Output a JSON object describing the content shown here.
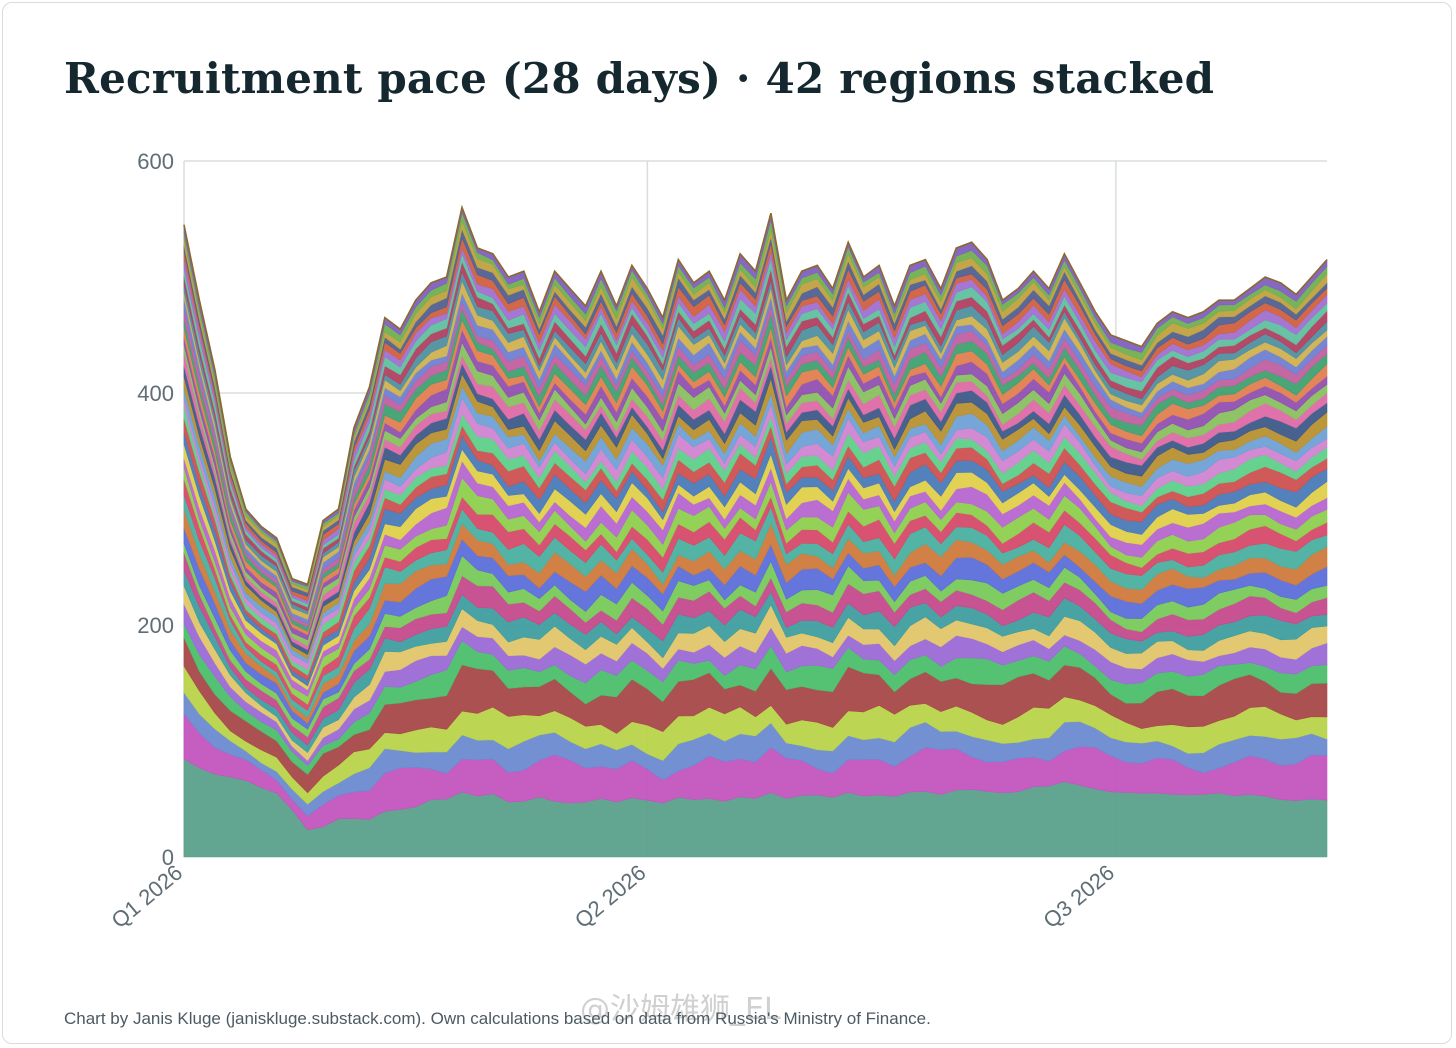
{
  "title": "Recruitment pace (28 days) · 42 regions stacked",
  "footer": "Chart by Janis Kluge (janiskluge.substack.com). Own calculations based on data from Russia's Ministry of Finance.",
  "watermark": "@沙姆雄狮_EL",
  "chart_data": {
    "type": "area",
    "title": "Recruitment pace (28 days) · 42 regions stacked",
    "xlabel": "",
    "ylabel": "",
    "ylim": [
      0,
      600
    ],
    "y_ticks": [
      "0",
      "200",
      "400",
      "600"
    ],
    "x_ticks": [
      "Q1 2026",
      "Q2 2026",
      "Q3 2026"
    ],
    "x_tick_dates": [
      "2026-01-01",
      "2026-04-01",
      "2026-07-01"
    ],
    "x_range": [
      "2026-01-01",
      "2026-08-11"
    ],
    "grid": true,
    "legend": "none",
    "stacked": true,
    "series_count": 42,
    "series_colors": [
      "#5aa08a",
      "#c354be",
      "#6c8ad0",
      "#b8d34a",
      "#a84848",
      "#4bbf6a",
      "#9b6ad6",
      "#e2c56a",
      "#3f9e9f",
      "#c44a8c",
      "#78c95a",
      "#5c6ed9",
      "#d07a3c",
      "#4ab0a0",
      "#d64a6a",
      "#8ecf4e",
      "#b666cf",
      "#e0d04a",
      "#4a7ab8",
      "#ce5050",
      "#5fd08a",
      "#d084d0",
      "#6fa0d6",
      "#b89030",
      "#3e5a8a",
      "#de6aa6",
      "#88c060",
      "#9050b0",
      "#e08050",
      "#40a070",
      "#c060a0",
      "#7080d0",
      "#d0b050",
      "#5090a0",
      "#b04060",
      "#60c0a0",
      "#a070d0",
      "#d06040",
      "#506090",
      "#c0a040",
      "#70b050",
      "#8060c0"
    ],
    "dates": [
      "2026-01-01",
      "2026-01-04",
      "2026-01-07",
      "2026-01-10",
      "2026-01-13",
      "2026-01-16",
      "2026-01-19",
      "2026-01-22",
      "2026-01-25",
      "2026-01-28",
      "2026-01-31",
      "2026-02-03",
      "2026-02-06",
      "2026-02-09",
      "2026-02-12",
      "2026-02-15",
      "2026-02-18",
      "2026-02-21",
      "2026-02-24",
      "2026-02-27",
      "2026-03-02",
      "2026-03-05",
      "2026-03-08",
      "2026-03-11",
      "2026-03-14",
      "2026-03-17",
      "2026-03-20",
      "2026-03-23",
      "2026-03-26",
      "2026-03-29",
      "2026-04-01",
      "2026-04-04",
      "2026-04-07",
      "2026-04-10",
      "2026-04-13",
      "2026-04-16",
      "2026-04-19",
      "2026-04-22",
      "2026-04-25",
      "2026-04-28",
      "2026-05-01",
      "2026-05-04",
      "2026-05-07",
      "2026-05-10",
      "2026-05-13",
      "2026-05-16",
      "2026-05-19",
      "2026-05-22",
      "2026-05-25",
      "2026-05-28",
      "2026-05-31",
      "2026-06-03",
      "2026-06-06",
      "2026-06-09",
      "2026-06-12",
      "2026-06-15",
      "2026-06-18",
      "2026-06-21",
      "2026-06-24",
      "2026-06-27",
      "2026-06-30",
      "2026-07-03",
      "2026-07-06",
      "2026-07-09",
      "2026-07-12",
      "2026-07-15",
      "2026-07-18",
      "2026-07-21",
      "2026-07-24",
      "2026-07-27",
      "2026-07-30",
      "2026-08-02",
      "2026-08-05",
      "2026-08-08",
      "2026-08-11"
    ],
    "totals": [
      545,
      480,
      420,
      345,
      300,
      285,
      275,
      240,
      235,
      290,
      300,
      370,
      405,
      465,
      455,
      480,
      495,
      500,
      560,
      525,
      520,
      500,
      505,
      470,
      505,
      490,
      475,
      505,
      475,
      510,
      490,
      465,
      515,
      495,
      505,
      480,
      520,
      505,
      555,
      480,
      505,
      510,
      490,
      530,
      500,
      510,
      475,
      510,
      515,
      490,
      525,
      530,
      515,
      480,
      490,
      505,
      490,
      520,
      495,
      470,
      450,
      445,
      440,
      460,
      470,
      465,
      470,
      480,
      480,
      490,
      500,
      495,
      485,
      500,
      515
    ],
    "bottom_share": [
      0.155,
      0.16,
      0.17,
      0.2,
      0.22,
      0.21,
      0.2,
      0.17,
      0.1,
      0.09,
      0.11,
      0.09,
      0.08,
      0.085,
      0.09,
      0.09,
      0.1,
      0.1,
      0.1,
      0.1,
      0.105,
      0.095,
      0.095,
      0.11,
      0.095,
      0.095,
      0.1,
      0.1,
      0.1,
      0.1,
      0.1,
      0.1,
      0.1,
      0.1,
      0.1,
      0.1,
      0.1,
      0.1,
      0.1,
      0.105,
      0.105,
      0.105,
      0.105,
      0.105,
      0.105,
      0.105,
      0.11,
      0.11,
      0.11,
      0.11,
      0.11,
      0.11,
      0.11,
      0.115,
      0.115,
      0.12,
      0.125,
      0.125,
      0.125,
      0.125,
      0.125,
      0.125,
      0.125,
      0.12,
      0.115,
      0.115,
      0.115,
      0.115,
      0.11,
      0.11,
      0.105,
      0.1,
      0.1,
      0.1,
      0.095
    ],
    "series_weights": [
      0.105,
      0.065,
      0.04,
      0.045,
      0.06,
      0.035,
      0.03,
      0.03,
      0.028,
      0.03,
      0.025,
      0.03,
      0.028,
      0.026,
      0.025,
      0.025,
      0.024,
      0.022,
      0.022,
      0.022,
      0.02,
      0.02,
      0.02,
      0.02,
      0.019,
      0.018,
      0.018,
      0.018,
      0.017,
      0.017,
      0.016,
      0.016,
      0.016,
      0.015,
      0.015,
      0.015,
      0.014,
      0.014,
      0.013,
      0.013,
      0.012,
      0.012
    ],
    "series_count_note": "42 stacked regional series; the first is the bottom share of the total, the rest split the remainder by weight"
  }
}
